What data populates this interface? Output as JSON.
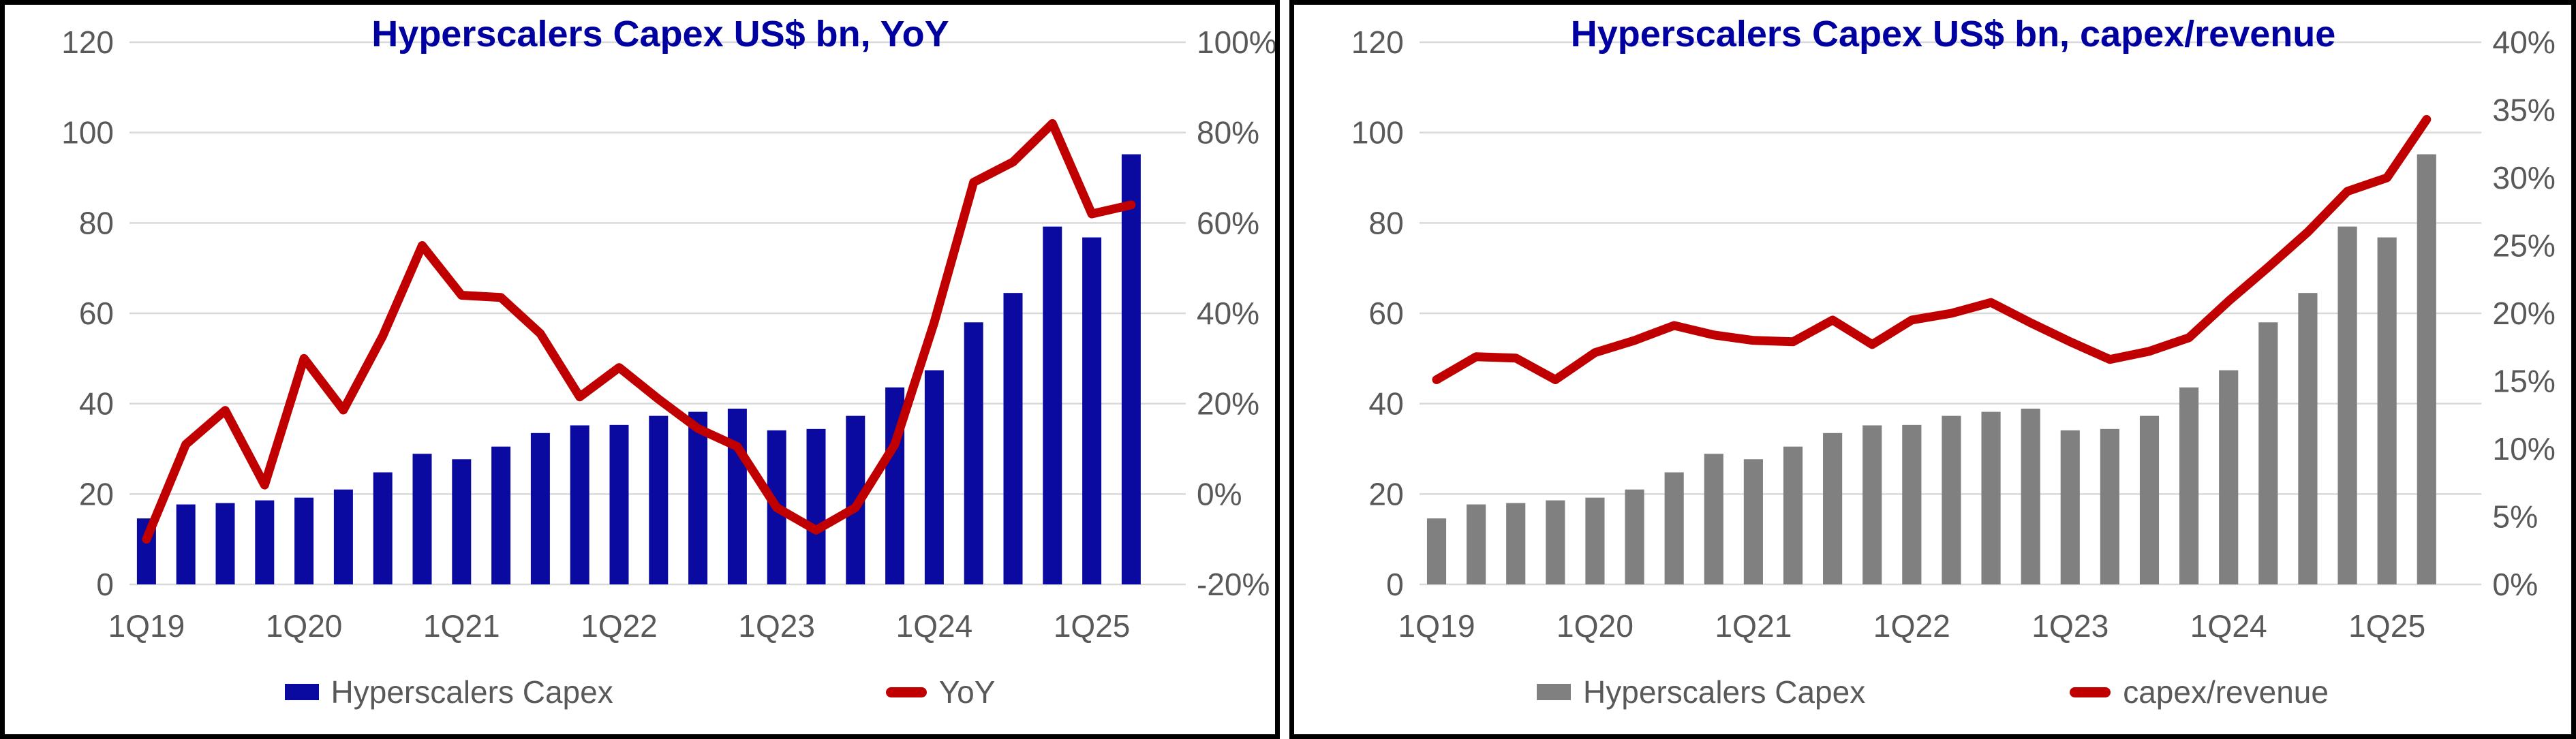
{
  "colors": {
    "title_blue": "#0000A0",
    "bar_blue": "#0A0AA0",
    "bar_gray": "#808080",
    "line_red": "#C00000",
    "axis_text": "#595959",
    "gridline": "#D9D9D9",
    "panel_border": "#000000"
  },
  "chart_data": [
    {
      "type": "bar-line-combo",
      "title": "Hyperscalers Capex US$ bn, YoY",
      "categories": [
        "1Q19",
        "2Q19",
        "3Q19",
        "4Q19",
        "1Q20",
        "2Q20",
        "3Q20",
        "4Q20",
        "1Q21",
        "2Q21",
        "3Q21",
        "4Q21",
        "1Q22",
        "2Q22",
        "3Q22",
        "4Q22",
        "1Q23",
        "2Q23",
        "3Q23",
        "4Q23",
        "1Q24",
        "2Q24",
        "3Q24",
        "4Q24",
        "1Q25",
        "2Q25"
      ],
      "x_tick_labels": [
        "1Q19",
        "1Q20",
        "1Q21",
        "1Q22",
        "1Q23",
        "1Q24",
        "1Q25"
      ],
      "x_tick_every": 4,
      "series": [
        {
          "name": "Hyperscalers Capex",
          "type": "bar",
          "axis": "left",
          "color": "#0A0AA0",
          "values": [
            14.6,
            17.7,
            18.0,
            18.6,
            19.2,
            21.0,
            24.8,
            28.9,
            27.7,
            30.5,
            33.5,
            35.2,
            35.3,
            37.3,
            38.2,
            38.9,
            34.1,
            34.4,
            37.3,
            43.6,
            47.4,
            58.0,
            64.5,
            79.2,
            76.8,
            95.2
          ]
        },
        {
          "name": "YoY",
          "type": "line",
          "axis": "right",
          "color": "#C00000",
          "values": [
            -10,
            11,
            18.5,
            2,
            30,
            18.6,
            35,
            55,
            44,
            43.5,
            35.5,
            21.5,
            28,
            21,
            14.5,
            10.5,
            -3,
            -8,
            -3,
            11,
            38,
            69,
            73.5,
            82,
            62,
            64
          ]
        }
      ],
      "left_axis": {
        "min": 0,
        "max": 120,
        "step": 20,
        "tick_labels": [
          "120",
          "100",
          "80",
          "60",
          "40",
          "20",
          "0"
        ]
      },
      "right_axis": {
        "min": -20,
        "max": 100,
        "step": 20,
        "tick_labels": [
          "100%",
          "80%",
          "60%",
          "40%",
          "20%",
          "0%",
          "-20%"
        ]
      },
      "grid": true,
      "legend_position": "bottom"
    },
    {
      "type": "bar-line-combo",
      "title": "Hyperscalers Capex US$ bn, capex/revenue",
      "categories": [
        "1Q19",
        "2Q19",
        "3Q19",
        "4Q19",
        "1Q20",
        "2Q20",
        "3Q20",
        "4Q20",
        "1Q21",
        "2Q21",
        "3Q21",
        "4Q21",
        "1Q22",
        "2Q22",
        "3Q22",
        "4Q22",
        "1Q23",
        "2Q23",
        "3Q23",
        "4Q23",
        "1Q24",
        "2Q24",
        "3Q24",
        "4Q24",
        "1Q25",
        "2Q25"
      ],
      "x_tick_labels": [
        "1Q19",
        "1Q20",
        "1Q21",
        "1Q22",
        "1Q23",
        "1Q24",
        "1Q25"
      ],
      "x_tick_every": 4,
      "series": [
        {
          "name": "Hyperscalers Capex",
          "type": "bar",
          "axis": "left",
          "color": "#808080",
          "values": [
            14.6,
            17.7,
            18.0,
            18.6,
            19.2,
            21.0,
            24.8,
            28.9,
            27.7,
            30.5,
            33.5,
            35.2,
            35.3,
            37.3,
            38.2,
            38.9,
            34.1,
            34.4,
            37.3,
            43.6,
            47.4,
            58.0,
            64.5,
            79.2,
            76.8,
            95.2
          ]
        },
        {
          "name": "capex/revenue",
          "type": "line",
          "axis": "right",
          "color": "#C00000",
          "values": [
            15.1,
            16.8,
            16.7,
            15.1,
            17.1,
            18.0,
            19.1,
            18.4,
            18.0,
            17.9,
            19.5,
            17.7,
            19.5,
            20.0,
            20.8,
            19.3,
            17.9,
            16.6,
            17.2,
            18.2,
            20.9,
            23.4,
            26.0,
            29.0,
            30.0,
            34.3
          ]
        }
      ],
      "left_axis": {
        "min": 0,
        "max": 120,
        "step": 20,
        "tick_labels": [
          "120",
          "100",
          "80",
          "60",
          "40",
          "20",
          "0"
        ]
      },
      "right_axis": {
        "min": 0,
        "max": 40,
        "step": 5,
        "tick_labels": [
          "40%",
          "35%",
          "30%",
          "25%",
          "20%",
          "15%",
          "10%",
          "5%",
          "0%"
        ]
      },
      "grid": true,
      "legend_position": "bottom"
    }
  ]
}
